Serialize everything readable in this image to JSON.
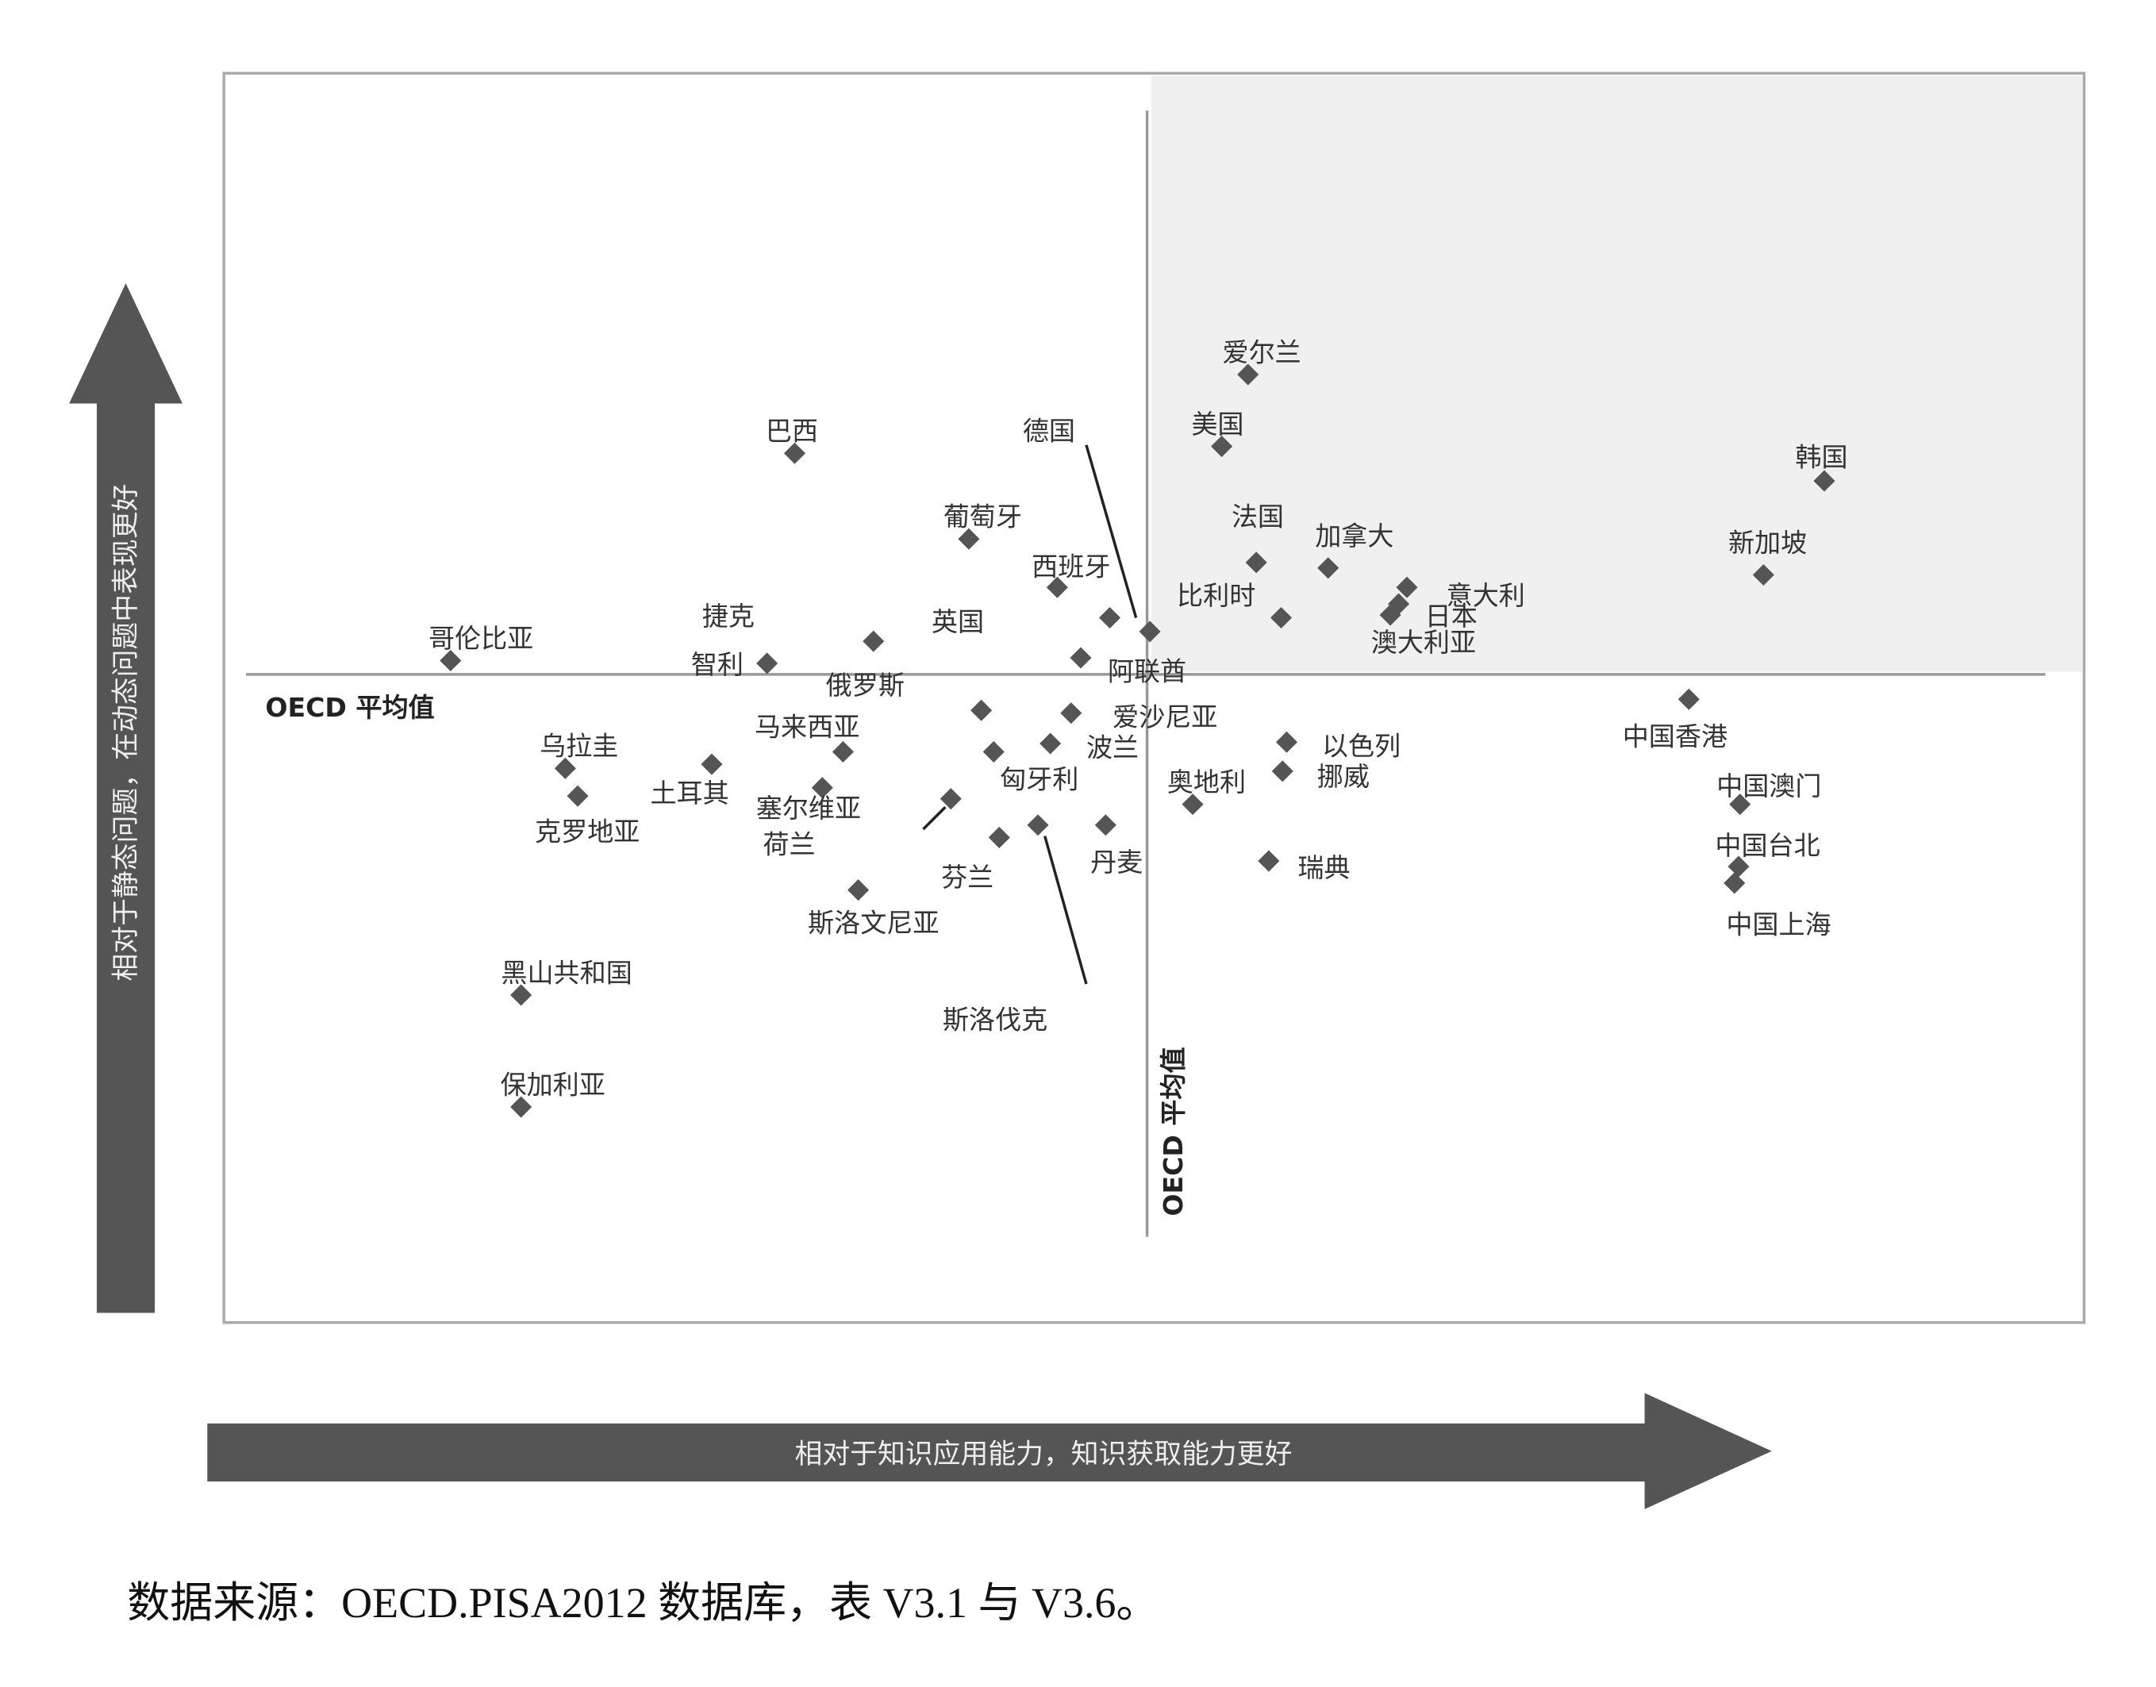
{
  "chart_data": {
    "type": "scatter",
    "xlabel": "相对于知识应用能力，知识获取能力更好",
    "ylabel": "相对于静态问题，在动态问题中表现更好",
    "reference_label": "OECD 平均值",
    "source": "数据来源：OECD.PISA2012 数据库，表 V3.1 与 V3.6。",
    "xlim": [
      -66.8,
      67.8
    ],
    "ylim": [
      -46.9,
      43.5
    ],
    "color": "#555555",
    "labels": [
      "哥伦比亚",
      "巴西",
      "葡萄牙",
      "西班牙",
      "英国",
      "德国",
      "阿联酋",
      "捷克",
      "智利",
      "爱尔兰",
      "美国",
      "法国",
      "比利时",
      "加拿大",
      "意大利",
      "日本",
      "澳大利亚",
      "韩国",
      "新加坡",
      "中国香港",
      "中国澳门",
      "中国台北",
      "中国上海",
      "乌拉圭",
      "克罗地亚",
      "土耳其",
      "马来西亚",
      "塞尔维亚",
      "荷兰",
      "俄罗斯",
      "爱沙尼亚",
      "波兰",
      "匈牙利",
      "芬兰",
      "斯洛伐克",
      "丹麦",
      "斯洛文尼亚",
      "奥地利",
      "以色列",
      "挪威",
      "瑞典",
      "黑山共和国",
      "保加利亚"
    ],
    "x": [
      -50.4,
      -25.5,
      -12.9,
      -6.5,
      -2.7,
      0.2,
      -4.8,
      -19.8,
      -27.5,
      7.3,
      5.4,
      7.9,
      9.7,
      13.1,
      18.8,
      18.2,
      17.6,
      49.0,
      44.6,
      39.2,
      42.9,
      42.8,
      42.5,
      -42.1,
      -41.2,
      -31.5,
      -22.0,
      -23.5,
      -14.2,
      -12.0,
      -5.5,
      -7.0,
      -11.1,
      -10.7,
      -7.9,
      -3.0,
      -20.9,
      3.3,
      10.1,
      9.8,
      8.8,
      -45.3,
      -45.3
    ],
    "y": [
      1.0,
      16.0,
      9.8,
      6.3,
      4.1,
      3.1,
      1.2,
      2.4,
      0.8,
      21.7,
      16.5,
      8.1,
      4.1,
      7.7,
      6.3,
      5.1,
      4.3,
      14.0,
      7.2,
      -1.8,
      -9.4,
      -13.9,
      -15.1,
      -6.8,
      -8.8,
      -6.5,
      -5.6,
      -8.2,
      -9.0,
      -2.6,
      -2.8,
      -5.0,
      -5.6,
      -11.8,
      -10.9,
      -10.9,
      -15.6,
      -9.4,
      -4.9,
      -7.0,
      -13.5,
      -23.2,
      -31.3
    ]
  }
}
